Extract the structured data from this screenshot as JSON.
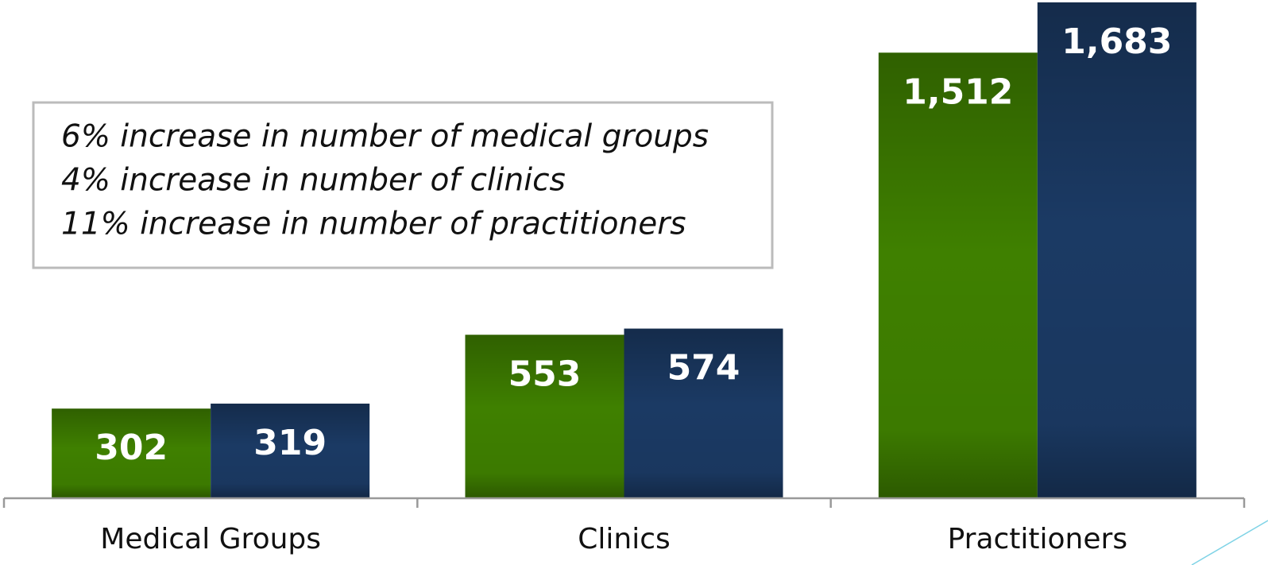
{
  "chart_data": {
    "type": "bar",
    "categories": [
      "Medical Groups",
      "Clinics",
      "Practitioners"
    ],
    "series": [
      {
        "color": "#3f8000",
        "values": [
          302,
          553,
          1512
        ],
        "value_labels": [
          "302",
          "553",
          "1,512"
        ]
      },
      {
        "color": "#1b3a64",
        "values": [
          319,
          574,
          1683
        ],
        "value_labels": [
          "319",
          "574",
          "1,683"
        ]
      }
    ],
    "annotations": [
      "6% increase in number of medical groups",
      "4% increase in number of clinics",
      "11% increase in number of practitioners"
    ]
  }
}
